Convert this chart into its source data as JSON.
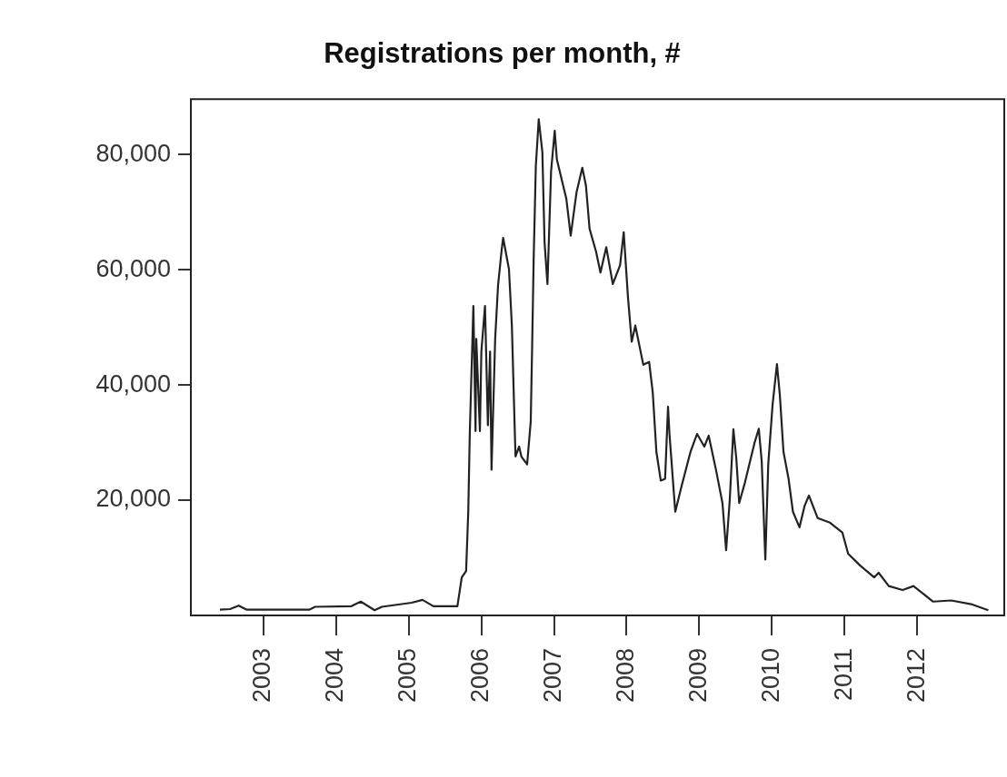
{
  "chart_data": {
    "type": "line",
    "title": "Registrations per month, #",
    "xlim": [
      2002.0,
      2013.2
    ],
    "xticks": [
      2003,
      2004,
      2005,
      2006,
      2007,
      2008,
      2009,
      2010,
      2011,
      2012
    ],
    "ylim": [
      0,
      89600
    ],
    "yticks": [
      {
        "value": 20000,
        "label": "20,000"
      },
      {
        "value": 40000,
        "label": "40,000"
      },
      {
        "value": 60000,
        "label": "60,000"
      },
      {
        "value": 80000,
        "label": "80,000"
      }
    ],
    "grid": false,
    "legend": false,
    "series": [
      {
        "color": "#222222",
        "x": [
          2002.4,
          2002.54,
          2002.66,
          2002.77,
          2003.63,
          2003.71,
          2004.21,
          2004.34,
          2004.53,
          2004.63,
          2005.04,
          2005.19,
          2005.34,
          2005.67,
          2005.73,
          2005.79,
          2005.82,
          2005.84,
          2005.89,
          2005.92,
          2005.93,
          2005.98,
          2006.0,
          2006.05,
          2006.09,
          2006.12,
          2006.14,
          2006.19,
          2006.23,
          2006.28,
          2006.3,
          2006.38,
          2006.42,
          2006.47,
          2006.52,
          2006.55,
          2006.63,
          2006.68,
          2006.7,
          2006.72,
          2006.75,
          2006.79,
          2006.84,
          2006.87,
          2006.91,
          2006.96,
          2007.01,
          2007.04,
          2007.17,
          2007.23,
          2007.31,
          2007.39,
          2007.44,
          2007.49,
          2007.58,
          2007.64,
          2007.72,
          2007.81,
          2007.91,
          2007.96,
          2008.02,
          2008.07,
          2008.12,
          2008.23,
          2008.31,
          2008.36,
          2008.41,
          2008.47,
          2008.53,
          2008.57,
          2008.59,
          2008.67,
          2008.76,
          2008.88,
          2008.97,
          2009.07,
          2009.13,
          2009.23,
          2009.32,
          2009.37,
          2009.42,
          2009.47,
          2009.51,
          2009.55,
          2009.63,
          2009.76,
          2009.82,
          2009.86,
          2009.91,
          2009.95,
          2010.01,
          2010.07,
          2010.11,
          2010.16,
          2010.23,
          2010.29,
          2010.38,
          2010.45,
          2010.51,
          2010.63,
          2010.8,
          2010.97,
          2011.05,
          2011.22,
          2011.41,
          2011.47,
          2011.61,
          2011.8,
          2011.95,
          2012.22,
          2012.47,
          2012.76,
          2012.98
        ],
        "values": [
          1000,
          1100,
          1700,
          1000,
          1000,
          1500,
          1600,
          2400,
          900,
          1500,
          2200,
          2700,
          1600,
          1600,
          6600,
          7700,
          18100,
          31300,
          53700,
          32000,
          48000,
          32000,
          45800,
          53700,
          33000,
          45800,
          25300,
          48000,
          57300,
          63500,
          65500,
          60100,
          50300,
          27600,
          29300,
          27600,
          26200,
          33700,
          47200,
          61800,
          78000,
          86100,
          80400,
          64800,
          57500,
          77100,
          84100,
          79100,
          72300,
          65900,
          73400,
          77700,
          74600,
          67100,
          63100,
          59500,
          63900,
          57500,
          60800,
          66500,
          55000,
          47500,
          50300,
          43500,
          44000,
          38700,
          28400,
          23400,
          23700,
          36200,
          31500,
          18000,
          22600,
          28400,
          31500,
          29300,
          31200,
          25300,
          19500,
          11300,
          20000,
          32300,
          27300,
          19500,
          23100,
          29900,
          32400,
          26800,
          9700,
          26200,
          36600,
          43600,
          38200,
          28400,
          23700,
          18000,
          15300,
          19000,
          20800,
          16900,
          16100,
          14400,
          10700,
          8600,
          6600,
          7400,
          5100,
          4400,
          5100,
          2400,
          2600,
          1900,
          900
        ]
      }
    ]
  }
}
